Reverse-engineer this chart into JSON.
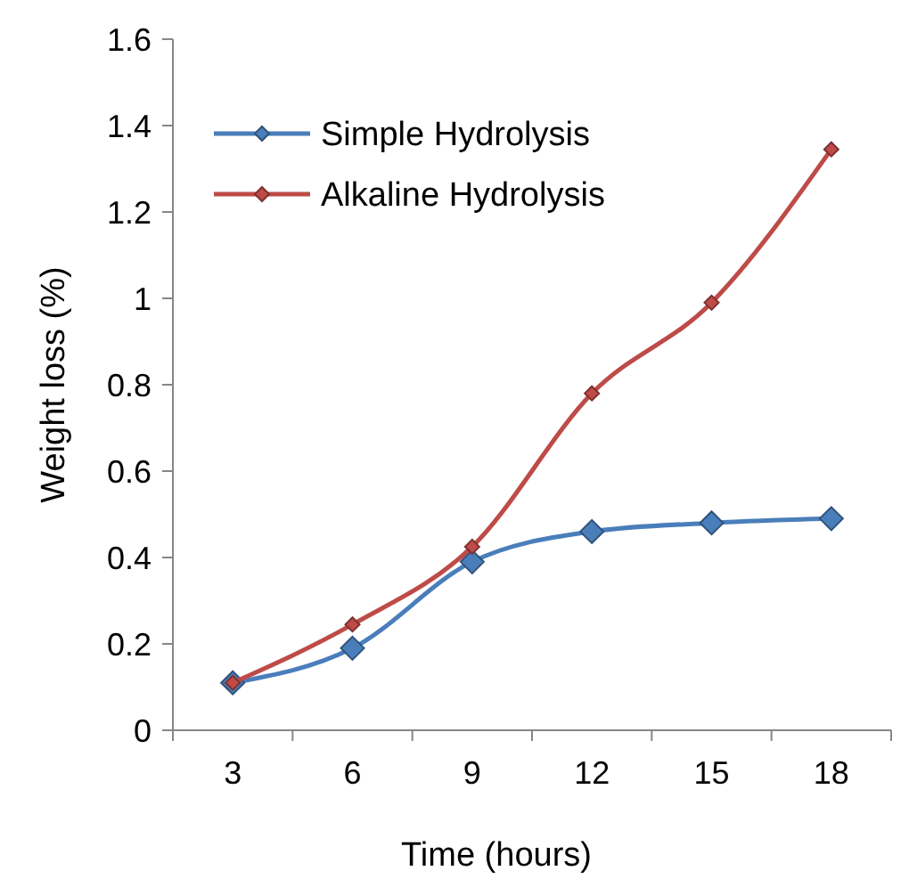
{
  "chart_data": {
    "type": "line",
    "xlabel": "Time (hours)",
    "ylabel": "Weight loss (%)",
    "categories": [
      "3",
      "6",
      "9",
      "12",
      "15",
      "18"
    ],
    "series": [
      {
        "name": "Simple Hydrolysis",
        "color": "#4a7ebb",
        "values": [
          0.11,
          0.19,
          0.39,
          0.46,
          0.48,
          0.49
        ]
      },
      {
        "name": "Alkaline Hydrolysis",
        "color": "#be4b48",
        "values": [
          0.11,
          0.245,
          0.425,
          0.78,
          0.99,
          1.345
        ]
      }
    ],
    "ylim": [
      0,
      1.6
    ],
    "yticks": [
      0,
      0.2,
      0.4,
      0.6,
      0.8,
      1,
      1.2,
      1.4,
      1.6
    ],
    "grid": false,
    "legend": "top left",
    "marker": "diamond",
    "line_style": "solid"
  }
}
